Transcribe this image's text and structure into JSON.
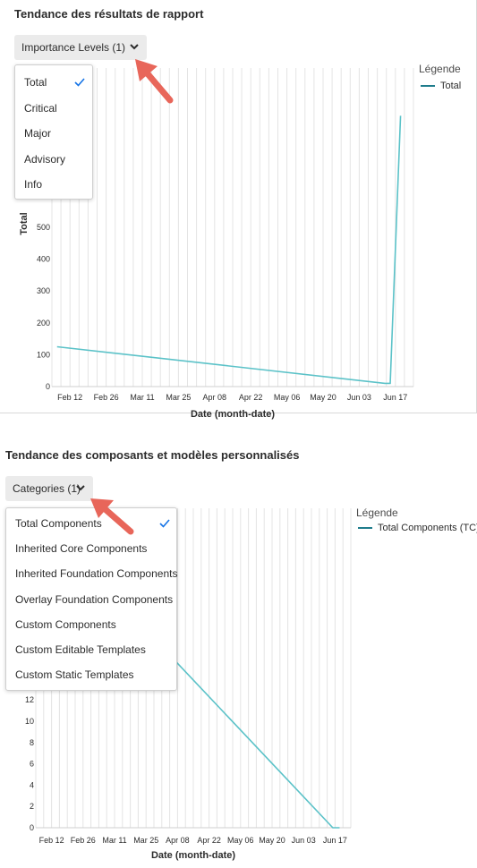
{
  "colors": {
    "series": "#5bc2c8",
    "legend_swatch": "#1f7c8c",
    "grid": "#e4e4e4",
    "check": "#1473e6",
    "arrow": "#e8665a"
  },
  "report": {
    "title": "Tendance des résultats de rapport",
    "picker_label": "Importance Levels (1)",
    "menu": [
      {
        "label": "Total",
        "selected": true
      },
      {
        "label": "Critical",
        "selected": false
      },
      {
        "label": "Major",
        "selected": false
      },
      {
        "label": "Advisory",
        "selected": false
      },
      {
        "label": "Info",
        "selected": false
      }
    ],
    "legend_title": "Légende",
    "legend_items": [
      "Total"
    ]
  },
  "components": {
    "title": "Tendance des composants et modèles personnalisés",
    "picker_label": "Categories (1)",
    "menu": [
      {
        "label": "Total Components",
        "selected": true
      },
      {
        "label": "Inherited Core Components",
        "selected": false
      },
      {
        "label": "Inherited Foundation Components",
        "selected": false
      },
      {
        "label": "Overlay Foundation Components",
        "selected": false
      },
      {
        "label": "Custom Components",
        "selected": false
      },
      {
        "label": "Custom Editable Templates",
        "selected": false
      },
      {
        "label": "Custom Static Templates",
        "selected": false
      }
    ],
    "legend_title": "Légende",
    "legend_items": [
      "Total Components (TC)"
    ]
  },
  "chart_data": [
    {
      "type": "line",
      "title": "",
      "xlabel": "Date (month-date)",
      "ylabel": "Total",
      "x_ticks": [
        "Feb 12",
        "Feb 26",
        "Mar 11",
        "Mar 25",
        "Apr 08",
        "Apr 22",
        "May 06",
        "May 20",
        "Jun 03",
        "Jun 17"
      ],
      "y_ticks": [
        0,
        100,
        200,
        300,
        400,
        500
      ],
      "ylim": [
        0,
        1000
      ],
      "grid": "vertical",
      "legend": "right",
      "series": [
        {
          "name": "Total",
          "points": [
            [
              "Feb 07",
              125
            ],
            [
              "Jun 13",
              10
            ],
            [
              "Jun 15",
              10
            ],
            [
              "Jun 19",
              850
            ]
          ]
        }
      ]
    },
    {
      "type": "line",
      "title": "",
      "xlabel": "Date (month-date)",
      "ylabel": "",
      "x_ticks": [
        "Feb 12",
        "Feb 26",
        "Mar 11",
        "Mar 25",
        "Apr 08",
        "Apr 22",
        "May 06",
        "May 20",
        "Jun 03",
        "Jun 17"
      ],
      "y_ticks": [
        0,
        2,
        4,
        6,
        8,
        10,
        12
      ],
      "ylim": [
        0,
        30
      ],
      "grid": "vertical",
      "legend": "right",
      "series": [
        {
          "name": "Total Components (TC)",
          "points": [
            [
              "Apr 01",
              17
            ],
            [
              "Jun 16",
              0
            ],
            [
              "Jun 19",
              0
            ]
          ]
        }
      ]
    }
  ]
}
